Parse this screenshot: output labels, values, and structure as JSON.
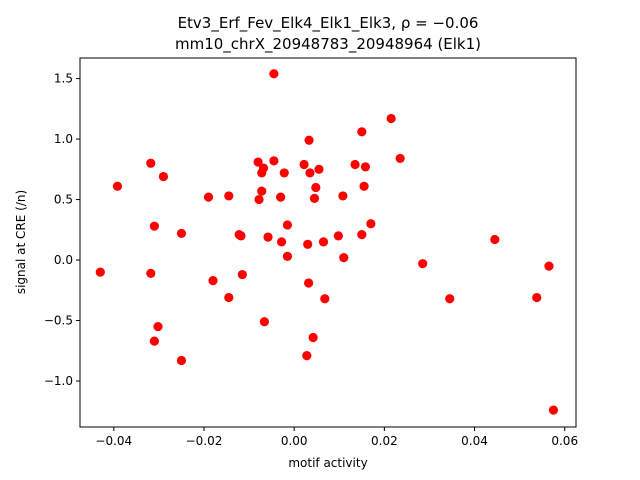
{
  "chart_data": {
    "type": "scatter",
    "title_line1": "Etv3_Erf_Fev_Elk4_Elk1_Elk3, ρ = −0.06",
    "title_line2": "mm10_chrX_20948783_20948964 (Elk1)",
    "xlabel": "motif activity",
    "ylabel": "signal at CRE (/n)",
    "xlim": [
      -0.0475,
      0.0625
    ],
    "ylim": [
      -1.38,
      1.67
    ],
    "xticks": [
      -0.04,
      -0.02,
      0.0,
      0.02,
      0.04,
      0.06
    ],
    "xtick_labels": [
      "−0.04",
      "−0.02",
      "0.00",
      "0.02",
      "0.04",
      "0.06"
    ],
    "yticks": [
      -1.0,
      -0.5,
      0.0,
      0.5,
      1.0,
      1.5
    ],
    "ytick_labels": [
      "−1.0",
      "−0.5",
      "0.0",
      "0.5",
      "1.0",
      "1.5"
    ],
    "grid": false,
    "marker_color": "#ff0000",
    "points": [
      [
        -0.043,
        -0.1
      ],
      [
        -0.0392,
        0.61
      ],
      [
        -0.0318,
        0.8
      ],
      [
        -0.0318,
        -0.11
      ],
      [
        -0.031,
        0.28
      ],
      [
        -0.031,
        -0.67
      ],
      [
        -0.0302,
        -0.55
      ],
      [
        -0.029,
        0.69
      ],
      [
        -0.025,
        0.22
      ],
      [
        -0.025,
        -0.83
      ],
      [
        -0.019,
        0.52
      ],
      [
        -0.018,
        -0.17
      ],
      [
        -0.0145,
        0.53
      ],
      [
        -0.0145,
        -0.31
      ],
      [
        -0.0122,
        0.21
      ],
      [
        -0.0118,
        0.2
      ],
      [
        -0.0115,
        -0.12
      ],
      [
        -0.008,
        0.81
      ],
      [
        -0.0078,
        0.5
      ],
      [
        -0.0072,
        0.57
      ],
      [
        -0.0072,
        0.72
      ],
      [
        -0.0068,
        0.76
      ],
      [
        -0.0066,
        -0.51
      ],
      [
        -0.0058,
        0.19
      ],
      [
        -0.0045,
        1.54
      ],
      [
        -0.0045,
        0.82
      ],
      [
        -0.003,
        0.52
      ],
      [
        -0.0028,
        0.15
      ],
      [
        -0.0022,
        0.72
      ],
      [
        -0.0015,
        0.29
      ],
      [
        -0.0015,
        0.03
      ],
      [
        0.0022,
        0.79
      ],
      [
        0.0028,
        -0.79
      ],
      [
        0.003,
        0.13
      ],
      [
        0.0032,
        -0.19
      ],
      [
        0.0033,
        0.99
      ],
      [
        0.0035,
        0.72
      ],
      [
        0.0042,
        -0.64
      ],
      [
        0.0045,
        0.51
      ],
      [
        0.0048,
        0.6
      ],
      [
        0.0055,
        0.75
      ],
      [
        0.0065,
        0.15
      ],
      [
        0.0068,
        -0.32
      ],
      [
        0.0098,
        0.2
      ],
      [
        0.0108,
        0.53
      ],
      [
        0.011,
        0.02
      ],
      [
        0.0135,
        0.79
      ],
      [
        0.015,
        1.06
      ],
      [
        0.015,
        0.21
      ],
      [
        0.0155,
        0.61
      ],
      [
        0.0158,
        0.77
      ],
      [
        0.017,
        0.3
      ],
      [
        0.0215,
        1.17
      ],
      [
        0.0235,
        0.84
      ],
      [
        0.0285,
        -0.03
      ],
      [
        0.0345,
        -0.32
      ],
      [
        0.0445,
        0.17
      ],
      [
        0.0538,
        -0.31
      ],
      [
        0.0565,
        -0.05
      ],
      [
        0.0575,
        -1.24
      ]
    ]
  }
}
